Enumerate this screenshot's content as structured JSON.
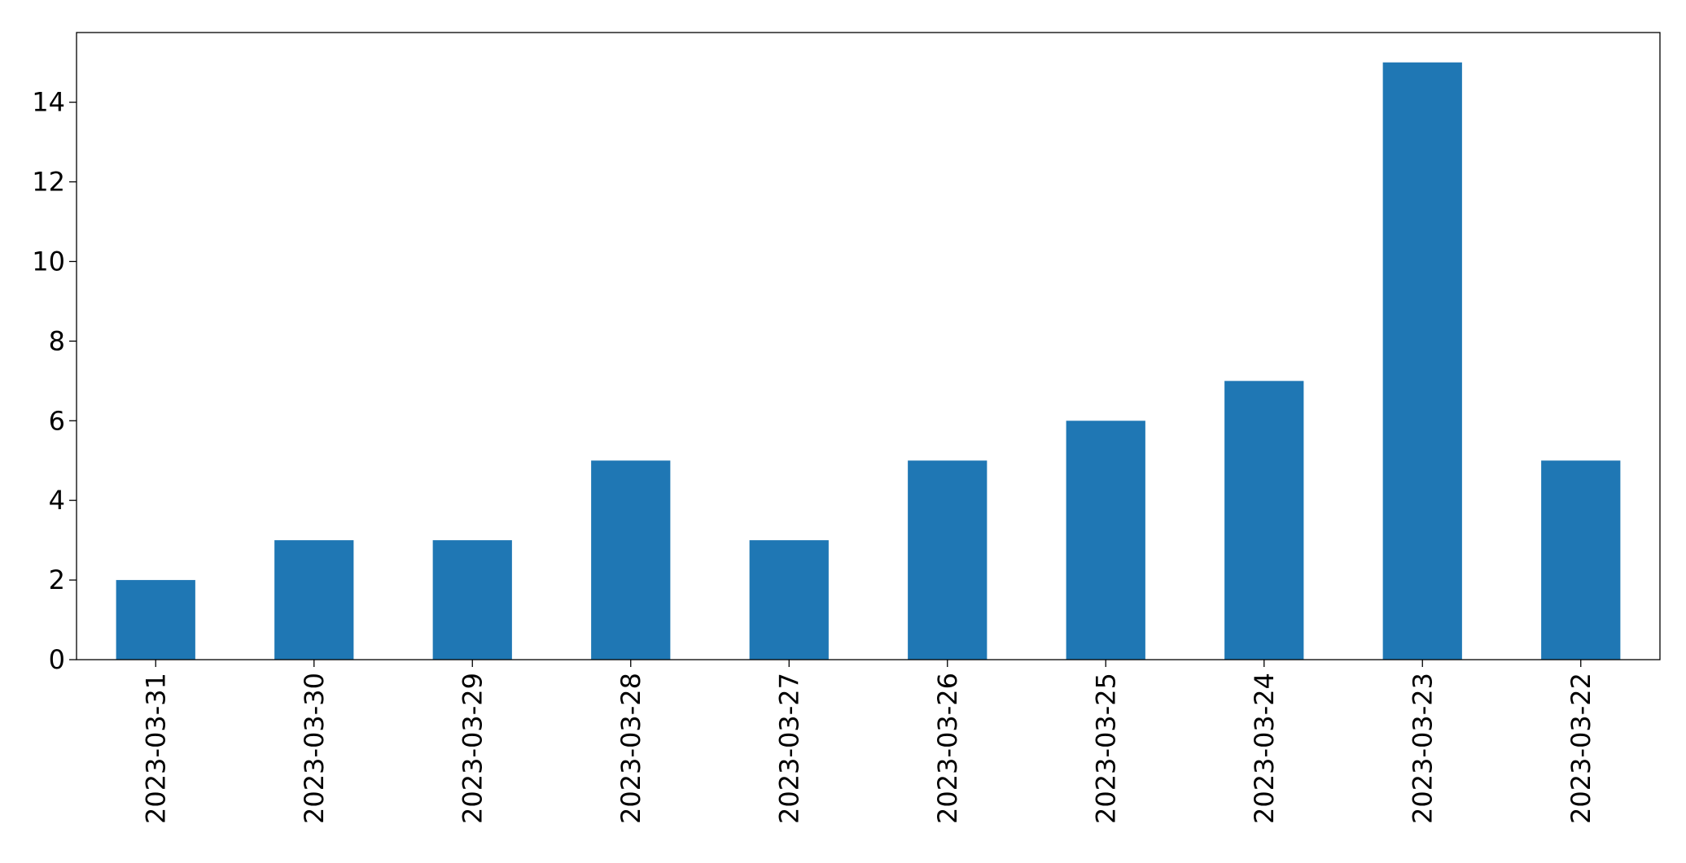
{
  "chart_data": {
    "type": "bar",
    "categories": [
      "2023-03-31",
      "2023-03-30",
      "2023-03-29",
      "2023-03-28",
      "2023-03-27",
      "2023-03-26",
      "2023-03-25",
      "2023-03-24",
      "2023-03-23",
      "2023-03-22"
    ],
    "values": [
      2,
      3,
      3,
      5,
      3,
      5,
      6,
      7,
      15,
      5
    ],
    "ylim": [
      0,
      15.75
    ],
    "yticks": [
      0,
      2,
      4,
      6,
      8,
      10,
      12,
      14
    ],
    "xlabel": "",
    "ylabel": "",
    "title": "",
    "grid": false,
    "bar_color": "#1f77b4",
    "x_tick_rotation": "vertical"
  }
}
